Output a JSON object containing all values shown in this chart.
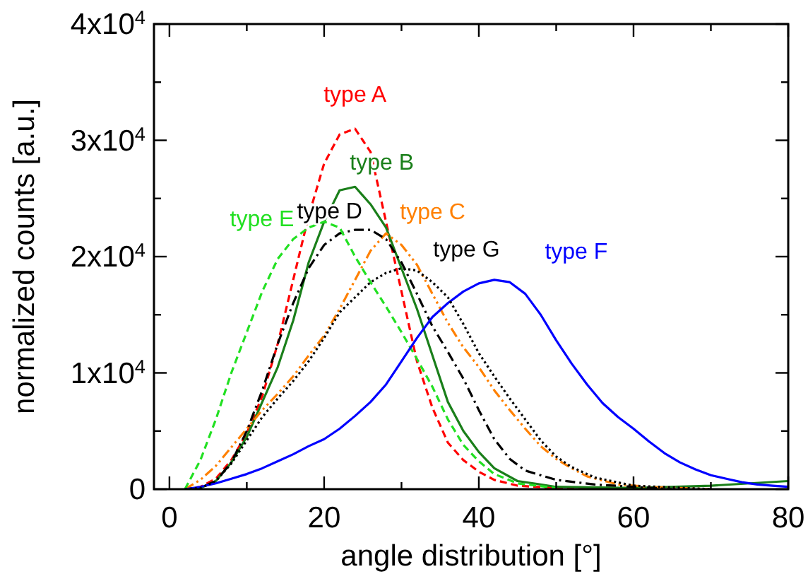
{
  "chart_data": {
    "type": "line",
    "xlabel": "angle distribution [°]",
    "ylabel": "normalized counts [a.u.]",
    "xlim": [
      -2,
      80
    ],
    "ylim": [
      0,
      40000
    ],
    "xticks": [
      0,
      {
        "value": 10,
        "label": null
      },
      20,
      {
        "value": 30,
        "label": null
      },
      40,
      {
        "value": 50,
        "label": null
      },
      60,
      {
        "value": 70,
        "label": null
      },
      80
    ],
    "yticks": [
      0,
      {
        "value": 5000,
        "label": null
      },
      {
        "value": 10000,
        "label": "1x10$^{4}$"
      },
      {
        "value": 15000,
        "label": null
      },
      {
        "value": 20000,
        "label": "2x10$^{4}$"
      },
      {
        "value": 25000,
        "label": null
      },
      {
        "value": 30000,
        "label": "3x10$^{4}$"
      },
      {
        "value": 35000,
        "label": null
      },
      {
        "value": 40000,
        "label": "4x10$^{4}$"
      }
    ],
    "grid": false,
    "marker": "none",
    "series": [
      {
        "name": "type A",
        "color": "#ff0000",
        "line_style": "dashed",
        "x": [
          2,
          4,
          6,
          8,
          10,
          12,
          14,
          16,
          18,
          20,
          22,
          24,
          26,
          28,
          30,
          32,
          34,
          36,
          38,
          40,
          42,
          45,
          50,
          60
        ],
        "values": [
          0,
          200,
          900,
          2500,
          4800,
          8000,
          12500,
          18000,
          23500,
          28000,
          30500,
          31000,
          29000,
          23000,
          17000,
          11000,
          7000,
          4000,
          2500,
          1500,
          800,
          300,
          100,
          0
        ]
      },
      {
        "name": "type B",
        "color": "#1a7f1a",
        "line_style": "solid",
        "x": [
          2,
          4,
          6,
          8,
          10,
          12,
          14,
          16,
          18,
          20,
          22,
          24,
          26,
          28,
          30,
          32,
          34,
          36,
          38,
          40,
          42,
          45,
          50,
          60,
          70,
          80
        ],
        "values": [
          0,
          100,
          700,
          2300,
          4500,
          7500,
          10500,
          14500,
          19500,
          23000,
          25700,
          26000,
          24500,
          22500,
          19000,
          15500,
          11500,
          7500,
          5000,
          3200,
          1800,
          700,
          200,
          100,
          300,
          700
        ]
      },
      {
        "name": "type C",
        "color": "#ff8000",
        "line_style": "dashdotdot",
        "x": [
          2,
          4,
          6,
          8,
          10,
          12,
          14,
          16,
          18,
          20,
          22,
          24,
          26,
          28,
          30,
          32,
          34,
          36,
          38,
          40,
          42,
          44,
          46,
          48,
          50,
          52,
          54,
          58,
          62,
          70
        ],
        "values": [
          0,
          800,
          2000,
          3600,
          5200,
          6800,
          8200,
          9700,
          11500,
          13200,
          15500,
          18000,
          20500,
          22000,
          21000,
          19300,
          16800,
          14300,
          12200,
          10500,
          8500,
          6800,
          5200,
          3700,
          2600,
          1800,
          1100,
          400,
          200,
          0
        ]
      },
      {
        "name": "type D",
        "color": "#000000",
        "line_style": "dashdot",
        "x": [
          2,
          4,
          6,
          8,
          10,
          12,
          14,
          16,
          18,
          20,
          22,
          24,
          26,
          28,
          30,
          32,
          34,
          36,
          38,
          40,
          42,
          44,
          46,
          50,
          55,
          60,
          65
        ],
        "values": [
          0,
          100,
          700,
          2300,
          5000,
          8500,
          12500,
          16000,
          19000,
          21000,
          22000,
          22300,
          22300,
          21500,
          19500,
          16800,
          14000,
          11800,
          9500,
          6800,
          4300,
          2600,
          1600,
          800,
          400,
          200,
          0
        ]
      },
      {
        "name": "type E",
        "color": "#22e022",
        "line_style": "dashed",
        "x": [
          2,
          4,
          6,
          8,
          10,
          12,
          14,
          16,
          18,
          20,
          22,
          24,
          26,
          28,
          30,
          32,
          34,
          36,
          38,
          40,
          42,
          45,
          50
        ],
        "values": [
          0,
          2500,
          6000,
          10000,
          13500,
          17000,
          19800,
          21500,
          22500,
          23000,
          22500,
          20000,
          17800,
          15700,
          13500,
          11200,
          8800,
          6000,
          3800,
          2400,
          1300,
          500,
          100
        ]
      },
      {
        "name": "type F",
        "color": "#0000ff",
        "line_style": "solid",
        "x": [
          2,
          4,
          6,
          8,
          10,
          12,
          14,
          16,
          18,
          20,
          22,
          24,
          26,
          28,
          30,
          32,
          34,
          36,
          38,
          40,
          42,
          44,
          46,
          48,
          50,
          52,
          54,
          56,
          58,
          60,
          62,
          64,
          66,
          68,
          70,
          72,
          74,
          76,
          78,
          80
        ],
        "values": [
          0,
          200,
          500,
          900,
          1300,
          1800,
          2400,
          3000,
          3700,
          4300,
          5200,
          6300,
          7500,
          9000,
          11000,
          13000,
          14800,
          16000,
          17000,
          17700,
          18000,
          17800,
          16800,
          15000,
          12800,
          10800,
          9000,
          7400,
          6200,
          5200,
          4100,
          3100,
          2300,
          1700,
          1200,
          900,
          600,
          400,
          300,
          200
        ]
      },
      {
        "name": "type G",
        "color": "#000000",
        "line_style": "dotted",
        "x": [
          2,
          4,
          6,
          8,
          10,
          12,
          14,
          16,
          18,
          20,
          22,
          24,
          26,
          28,
          30,
          32,
          34,
          36,
          38,
          40,
          42,
          44,
          46,
          48,
          50,
          52,
          55,
          60,
          70
        ],
        "values": [
          0,
          100,
          700,
          2200,
          4200,
          6200,
          7800,
          9300,
          11000,
          13000,
          15200,
          16500,
          17800,
          18600,
          19000,
          18800,
          17800,
          16500,
          14200,
          11700,
          9700,
          7800,
          6000,
          4200,
          2800,
          1900,
          1000,
          300,
          0
        ]
      }
    ]
  }
}
